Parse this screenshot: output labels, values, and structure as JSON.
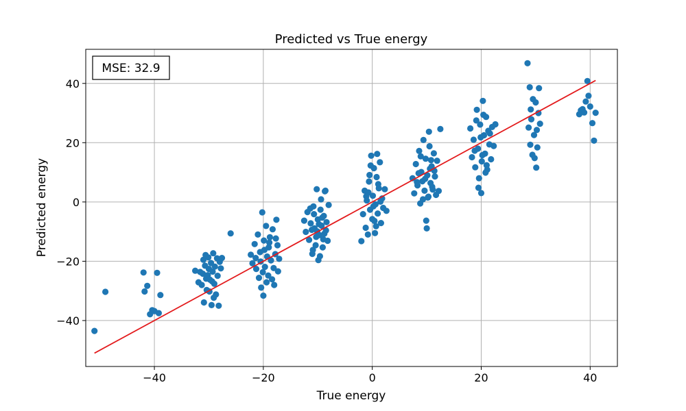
{
  "chart_data": {
    "type": "scatter",
    "title": "Predicted vs True energy",
    "xlabel": "True energy",
    "ylabel": "Predicted energy",
    "xlim": [
      -52.6,
      45.0
    ],
    "ylim": [
      -55.5,
      51.5
    ],
    "x_ticks": [
      -40,
      -20,
      0,
      20,
      40
    ],
    "y_ticks": [
      -40,
      -20,
      0,
      20,
      40
    ],
    "x_tick_labels": [
      "−40",
      "−20",
      "0",
      "20",
      "40"
    ],
    "y_tick_labels": [
      "−40",
      "−20",
      "0",
      "20",
      "40"
    ],
    "grid": true,
    "annotation": "MSE: 32.9",
    "annotation_position": "top-left",
    "colors": {
      "points": "#1f77b4",
      "fit_line": "#e31a1c",
      "grid": "#b0b0b0"
    },
    "series": [
      {
        "kind": "points",
        "points": [
          [
            -51.0,
            -43.5
          ],
          [
            -49.0,
            -30.3
          ],
          [
            -42.0,
            -23.8
          ],
          [
            -41.8,
            -30.2
          ],
          [
            -41.3,
            -28.3
          ],
          [
            -40.8,
            -37.9
          ],
          [
            -40.4,
            -36.5
          ],
          [
            -40.0,
            -36.8
          ],
          [
            -39.5,
            -23.9
          ],
          [
            -39.2,
            -37.5
          ],
          [
            -38.9,
            -31.4
          ],
          [
            -32.5,
            -23.2
          ],
          [
            -31.9,
            -27.1
          ],
          [
            -31.6,
            -23.6
          ],
          [
            -31.3,
            -28.0
          ],
          [
            -31.0,
            -19.5
          ],
          [
            -30.9,
            -33.9
          ],
          [
            -30.7,
            -21.5
          ],
          [
            -30.5,
            -25.9
          ],
          [
            -30.4,
            -29.7
          ],
          [
            -30.2,
            -24.7
          ],
          [
            -30.1,
            -18.7
          ],
          [
            -30.0,
            -22.6
          ],
          [
            -29.9,
            -30.2
          ],
          [
            -29.8,
            -26.2
          ],
          [
            -29.6,
            -20.6
          ],
          [
            -29.5,
            -34.8
          ],
          [
            -29.3,
            -23.5
          ],
          [
            -29.2,
            -17.3
          ],
          [
            -29.0,
            -27.6
          ],
          [
            -28.9,
            -21.8
          ],
          [
            -28.7,
            -31.2
          ],
          [
            -28.5,
            -19.0
          ],
          [
            -28.4,
            -24.9
          ],
          [
            -28.2,
            -35.0
          ],
          [
            -28.0,
            -20.2
          ],
          [
            -27.8,
            -22.4
          ],
          [
            -27.6,
            -18.9
          ],
          [
            -26.0,
            -10.6
          ],
          [
            -29.1,
            -32.3
          ],
          [
            -30.6,
            -17.9
          ],
          [
            -31.1,
            -24.2
          ],
          [
            -29.4,
            -26.8
          ],
          [
            -22.3,
            -17.8
          ],
          [
            -22.0,
            -20.7
          ],
          [
            -21.6,
            -14.2
          ],
          [
            -21.3,
            -22.6
          ],
          [
            -21.0,
            -11.0
          ],
          [
            -20.8,
            -25.6
          ],
          [
            -20.6,
            -16.9
          ],
          [
            -20.4,
            -28.9
          ],
          [
            -20.2,
            -3.5
          ],
          [
            -20.0,
            -31.6
          ],
          [
            -19.9,
            -13.0
          ],
          [
            -19.7,
            -21.9
          ],
          [
            -19.5,
            -8.1
          ],
          [
            -19.3,
            -18.4
          ],
          [
            -19.1,
            -24.8
          ],
          [
            -19.0,
            -15.3
          ],
          [
            -18.8,
            -11.9
          ],
          [
            -18.6,
            -19.7
          ],
          [
            -18.4,
            -26.1
          ],
          [
            -18.3,
            -9.2
          ],
          [
            -18.1,
            -22.3
          ],
          [
            -18.0,
            -28.0
          ],
          [
            -17.8,
            -17.6
          ],
          [
            -17.6,
            -6.0
          ],
          [
            -17.4,
            -14.6
          ],
          [
            -17.3,
            -23.4
          ],
          [
            -17.1,
            -19.2
          ],
          [
            -19.8,
            -16.2
          ],
          [
            -20.5,
            -20.1
          ],
          [
            -18.9,
            -13.7
          ],
          [
            -21.4,
            -18.9
          ],
          [
            -19.4,
            -27.1
          ],
          [
            -17.7,
            -12.3
          ],
          [
            -20.1,
            -23.7
          ],
          [
            -12.5,
            -6.3
          ],
          [
            -12.2,
            -10.1
          ],
          [
            -11.9,
            -3.4
          ],
          [
            -11.6,
            -12.8
          ],
          [
            -11.3,
            -7.2
          ],
          [
            -11.0,
            -17.5
          ],
          [
            -10.8,
            -1.5
          ],
          [
            -10.6,
            -8.9
          ],
          [
            -10.4,
            -14.6
          ],
          [
            -10.2,
            4.3
          ],
          [
            -10.0,
            -5.9
          ],
          [
            -9.9,
            -19.6
          ],
          [
            -9.7,
            -11.2
          ],
          [
            -9.5,
            -2.6
          ],
          [
            -9.3,
            -8.0
          ],
          [
            -9.1,
            -15.3
          ],
          [
            -8.9,
            -4.7
          ],
          [
            -8.8,
            -10.7
          ],
          [
            -8.6,
            3.8
          ],
          [
            -8.4,
            -6.8
          ],
          [
            -8.2,
            -13.1
          ],
          [
            -8.0,
            -1.0
          ],
          [
            -11.1,
            -9.4
          ],
          [
            -10.7,
            -4.1
          ],
          [
            -10.3,
            -11.8
          ],
          [
            -9.8,
            -7.5
          ],
          [
            -9.4,
            0.9
          ],
          [
            -9.0,
            -12.6
          ],
          [
            -10.9,
            -16.2
          ],
          [
            -9.6,
            -18.3
          ],
          [
            -8.7,
            3.6
          ],
          [
            -11.4,
            -2.2
          ],
          [
            -10.1,
            -9.9
          ],
          [
            -9.2,
            -5.3
          ],
          [
            -8.5,
            -9.6
          ],
          [
            -2.0,
            -13.2
          ],
          [
            -1.7,
            -4.1
          ],
          [
            -1.4,
            3.8
          ],
          [
            -1.2,
            -8.7
          ],
          [
            -1.0,
            0.5
          ],
          [
            -0.8,
            -11.0
          ],
          [
            -0.6,
            6.9
          ],
          [
            -0.4,
            -2.6
          ],
          [
            -0.2,
            15.6
          ],
          [
            0.0,
            -5.8
          ],
          [
            0.1,
            2.1
          ],
          [
            0.3,
            11.4
          ],
          [
            0.5,
            -10.5
          ],
          [
            0.6,
            -0.8
          ],
          [
            0.8,
            8.4
          ],
          [
            1.0,
            -3.9
          ],
          [
            1.2,
            4.6
          ],
          [
            1.4,
            13.4
          ],
          [
            1.6,
            -7.1
          ],
          [
            1.8,
            1.2
          ],
          [
            2.0,
            -2.0
          ],
          [
            2.3,
            4.3
          ],
          [
            2.6,
            -3.0
          ],
          [
            -0.5,
            9.1
          ],
          [
            0.4,
            -6.4
          ],
          [
            0.9,
            16.2
          ],
          [
            -1.1,
            1.9
          ],
          [
            0.2,
            -1.5
          ],
          [
            1.1,
            6.0
          ],
          [
            -0.7,
            3.2
          ],
          [
            0.7,
            -8.2
          ],
          [
            1.5,
            0.1
          ],
          [
            -0.3,
            12.3
          ],
          [
            7.4,
            8.0
          ],
          [
            7.7,
            2.9
          ],
          [
            8.0,
            12.8
          ],
          [
            8.3,
            5.6
          ],
          [
            8.6,
            17.2
          ],
          [
            8.8,
            -0.5
          ],
          [
            9.0,
            10.1
          ],
          [
            9.2,
            7.0
          ],
          [
            9.4,
            20.9
          ],
          [
            9.6,
            3.8
          ],
          [
            9.8,
            14.6
          ],
          [
            10.0,
            -8.9
          ],
          [
            10.1,
            9.0
          ],
          [
            10.3,
            1.8
          ],
          [
            10.5,
            18.8
          ],
          [
            10.7,
            6.4
          ],
          [
            10.9,
            12.0
          ],
          [
            11.1,
            4.2
          ],
          [
            11.3,
            16.4
          ],
          [
            11.5,
            8.6
          ],
          [
            11.7,
            2.4
          ],
          [
            11.9,
            13.9
          ],
          [
            12.2,
            3.7
          ],
          [
            12.5,
            24.6
          ],
          [
            10.4,
            23.7
          ],
          [
            9.9,
            -6.3
          ],
          [
            8.5,
            9.7
          ],
          [
            9.3,
            0.9
          ],
          [
            10.6,
            11.2
          ],
          [
            11.0,
            5.1
          ],
          [
            8.9,
            15.4
          ],
          [
            9.7,
            7.8
          ],
          [
            10.2,
            1.5
          ],
          [
            11.4,
            10.5
          ],
          [
            8.2,
            6.7
          ],
          [
            10.8,
            14.1
          ],
          [
            18.0,
            24.8
          ],
          [
            18.3,
            15.1
          ],
          [
            18.6,
            21.0
          ],
          [
            18.9,
            11.7
          ],
          [
            19.2,
            31.1
          ],
          [
            19.4,
            18.0
          ],
          [
            19.6,
            8.0
          ],
          [
            19.8,
            26.1
          ],
          [
            20.0,
            3.0
          ],
          [
            20.1,
            13.7
          ],
          [
            20.3,
            34.1
          ],
          [
            20.5,
            22.5
          ],
          [
            20.7,
            16.3
          ],
          [
            20.9,
            28.7
          ],
          [
            21.1,
            10.9
          ],
          [
            21.3,
            24.0
          ],
          [
            21.5,
            19.4
          ],
          [
            21.8,
            14.4
          ],
          [
            22.0,
            25.3
          ],
          [
            22.3,
            18.9
          ],
          [
            22.6,
            26.2
          ],
          [
            19.5,
            4.8
          ],
          [
            20.4,
            29.4
          ],
          [
            18.8,
            17.3
          ],
          [
            21.0,
            12.4
          ],
          [
            19.9,
            21.8
          ],
          [
            20.8,
            9.9
          ],
          [
            21.6,
            23.1
          ],
          [
            19.1,
            27.5
          ],
          [
            20.2,
            15.8
          ],
          [
            28.5,
            46.8
          ],
          [
            28.7,
            25.1
          ],
          [
            28.9,
            38.7
          ],
          [
            29.0,
            19.3
          ],
          [
            29.1,
            31.2
          ],
          [
            29.2,
            27.9
          ],
          [
            29.4,
            15.9
          ],
          [
            29.5,
            34.7
          ],
          [
            29.7,
            22.6
          ],
          [
            29.8,
            14.8
          ],
          [
            30.0,
            33.6
          ],
          [
            30.1,
            11.6
          ],
          [
            30.2,
            24.3
          ],
          [
            30.3,
            18.4
          ],
          [
            30.5,
            30.0
          ],
          [
            30.6,
            38.4
          ],
          [
            30.8,
            26.4
          ],
          [
            38.0,
            29.6
          ],
          [
            38.3,
            30.9
          ],
          [
            38.6,
            31.3
          ],
          [
            38.9,
            30.2
          ],
          [
            39.2,
            33.9
          ],
          [
            39.5,
            40.8
          ],
          [
            39.7,
            35.8
          ],
          [
            40.0,
            32.2
          ],
          [
            40.4,
            26.6
          ],
          [
            40.7,
            20.7
          ],
          [
            41.0,
            30.1
          ]
        ]
      },
      {
        "kind": "fit_line",
        "points": [
          [
            -51.0,
            -51.0
          ],
          [
            41.0,
            41.0
          ]
        ]
      }
    ]
  }
}
